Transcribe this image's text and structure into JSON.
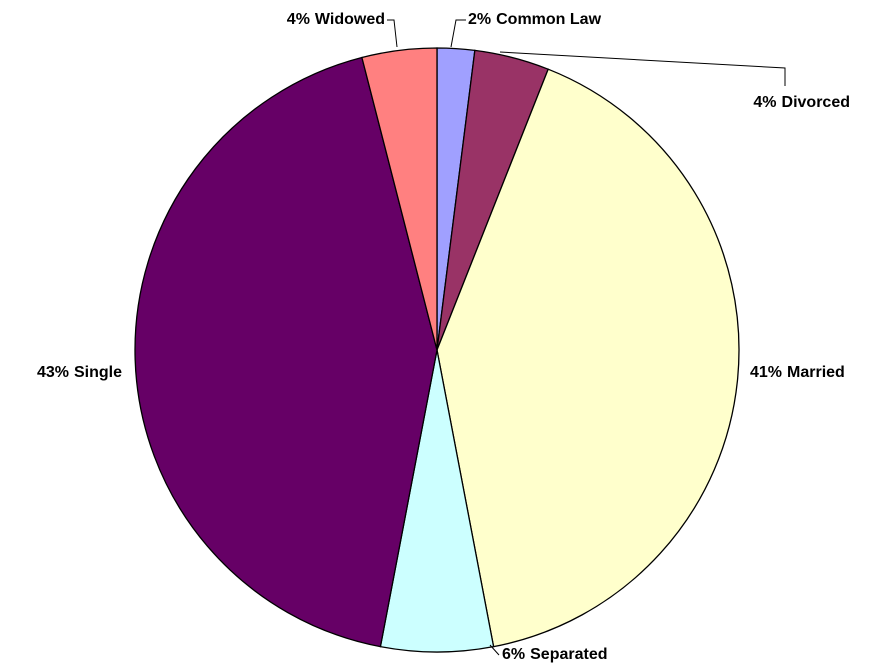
{
  "chart_data": {
    "type": "pie",
    "categories": [
      "Common Law",
      "Divorced",
      "Married",
      "Separated",
      "Single",
      "Widowed"
    ],
    "values": [
      2,
      4,
      41,
      6,
      43,
      4
    ],
    "value_labels": [
      "2%",
      "4%",
      "41%",
      "6%",
      "43%",
      "4%"
    ],
    "colors": [
      "#a0a0ff",
      "#993366",
      "#ffffcc",
      "#ccffff",
      "#660066",
      "#ff8080"
    ]
  }
}
